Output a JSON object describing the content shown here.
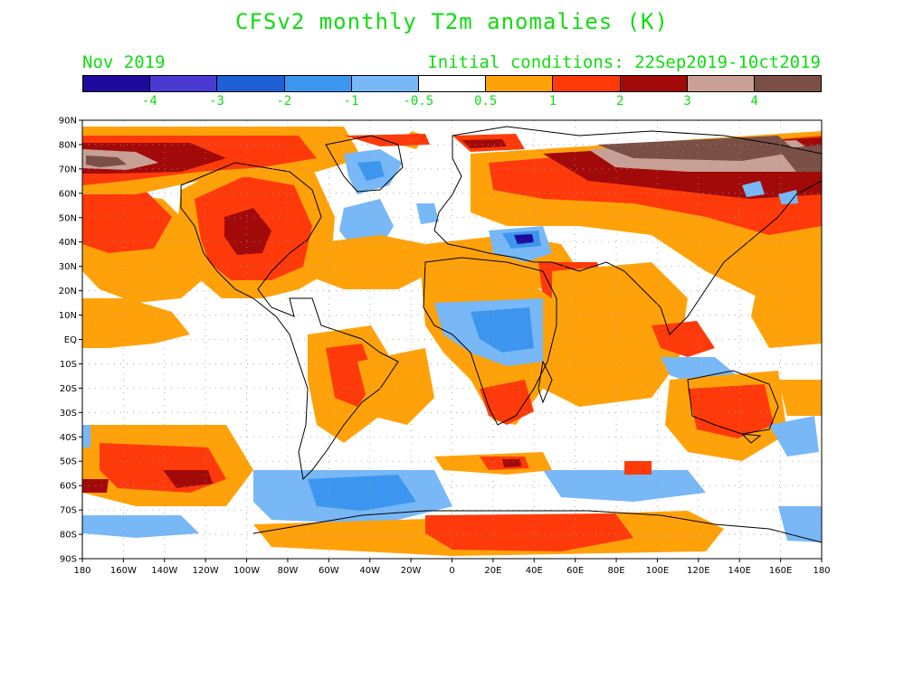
{
  "title": "CFSv2 monthly T2m anomalies (K)",
  "subtitle_left": "Nov 2019",
  "subtitle_right": "Initial conditions: 22Sep2019-10ct2019",
  "text_color": "#10dd10",
  "colorbar": {
    "colors": [
      "#1e0a9c",
      "#4a3ad2",
      "#1e5fd4",
      "#3c96f0",
      "#78b8f7",
      "#ffffff",
      "#ffa20a",
      "#ff3a0a",
      "#a20a0a",
      "#c8a096",
      "#7a5046"
    ],
    "labels": [
      "-4",
      "-3",
      "-2",
      "-1",
      "-0.5",
      "0.5",
      "1",
      "2",
      "3",
      "4"
    ]
  },
  "lat_labels": [
    "90N",
    "80N",
    "70N",
    "60N",
    "50N",
    "40N",
    "30N",
    "20N",
    "10N",
    "EQ",
    "10S",
    "20S",
    "30S",
    "40S",
    "50S",
    "60S",
    "70S",
    "80S",
    "90S"
  ],
  "lon_labels": [
    "180",
    "160W",
    "140W",
    "120W",
    "100W",
    "80W",
    "60W",
    "40W",
    "20W",
    "0",
    "20E",
    "40E",
    "60E",
    "80E",
    "100E",
    "120E",
    "140E",
    "160E",
    "180"
  ],
  "anomaly_colors": {
    "cold_strong": "#1e0a9c",
    "cold_mid": "#3c96f0",
    "cold_weak": "#78b8f7",
    "warm_weak": "#ffa20a",
    "warm_mid": "#ff3a0a",
    "warm_strong": "#a20a0a",
    "warm_very": "#c8a096",
    "warm_extreme": "#7a5046"
  }
}
